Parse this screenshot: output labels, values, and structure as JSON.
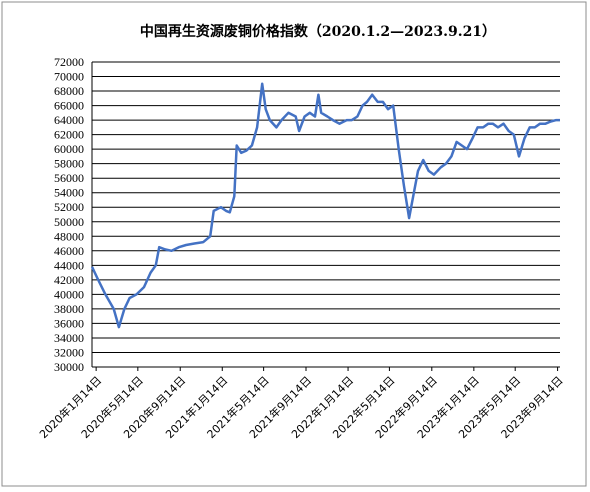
{
  "chart_data": {
    "type": "line",
    "title": "中国再生资源废铜价格指数（2020.1.2—2023.9.21）",
    "xlabel": "",
    "ylabel": "",
    "ylim": [
      30000,
      72000
    ],
    "y_ticks": [
      30000,
      32000,
      34000,
      36000,
      38000,
      40000,
      42000,
      44000,
      46000,
      48000,
      50000,
      52000,
      54000,
      56000,
      58000,
      60000,
      62000,
      64000,
      66000,
      68000,
      70000,
      72000
    ],
    "y_tick_labels": [
      "30000",
      "32000",
      "34000",
      "36000",
      "38000",
      "40000",
      "42000",
      "44000",
      "46000",
      "48000",
      "50000",
      "52000",
      "54000",
      "56000",
      "58000",
      "60000",
      "62000",
      "64000",
      "66000",
      "68000",
      "70000",
      "72000"
    ],
    "x_range": [
      "2020-01-02",
      "2023-09-21"
    ],
    "x_ticks": [
      "2020-01-14",
      "2020-05-14",
      "2020-09-14",
      "2021-01-14",
      "2021-05-14",
      "2021-09-14",
      "2022-01-14",
      "2022-05-14",
      "2022-09-14",
      "2023-01-14",
      "2023-05-14",
      "2023-09-14"
    ],
    "x_tick_labels": [
      "2020年1月14日",
      "2020年5月14日",
      "2020年9月14日",
      "2021年1月14日",
      "2021年5月14日",
      "2021年9月14日",
      "2022年1月14日",
      "2022年5月14日",
      "2022年9月14日",
      "2023年1月14日",
      "2023年5月14日",
      "2023年9月14日"
    ],
    "grid": "horizontal",
    "line_color": "#4472C4",
    "series": [
      {
        "name": "",
        "points": [
          [
            "2020-01-02",
            43800
          ],
          [
            "2020-01-20",
            42000
          ],
          [
            "2020-02-10",
            40000
          ],
          [
            "2020-03-05",
            38000
          ],
          [
            "2020-03-20",
            35500
          ],
          [
            "2020-04-05",
            38000
          ],
          [
            "2020-04-20",
            39500
          ],
          [
            "2020-05-10",
            40000
          ],
          [
            "2020-06-01",
            41000
          ],
          [
            "2020-06-20",
            43000
          ],
          [
            "2020-07-05",
            44000
          ],
          [
            "2020-07-15",
            46500
          ],
          [
            "2020-08-01",
            46200
          ],
          [
            "2020-08-20",
            46000
          ],
          [
            "2020-09-10",
            46500
          ],
          [
            "2020-10-01",
            46800
          ],
          [
            "2020-10-25",
            47000
          ],
          [
            "2020-11-20",
            47200
          ],
          [
            "2020-12-10",
            48000
          ],
          [
            "2020-12-20",
            51500
          ],
          [
            "2021-01-10",
            52000
          ],
          [
            "2021-01-25",
            51500
          ],
          [
            "2021-02-05",
            51300
          ],
          [
            "2021-02-18",
            53500
          ],
          [
            "2021-02-25",
            60500
          ],
          [
            "2021-03-10",
            59500
          ],
          [
            "2021-03-25",
            59800
          ],
          [
            "2021-04-10",
            60500
          ],
          [
            "2021-04-25",
            63000
          ],
          [
            "2021-05-10",
            69000
          ],
          [
            "2021-05-20",
            65500
          ],
          [
            "2021-06-01",
            64000
          ],
          [
            "2021-06-20",
            63000
          ],
          [
            "2021-07-05",
            64000
          ],
          [
            "2021-07-25",
            65000
          ],
          [
            "2021-08-15",
            64500
          ],
          [
            "2021-08-25",
            62500
          ],
          [
            "2021-09-10",
            64500
          ],
          [
            "2021-09-25",
            65000
          ],
          [
            "2021-10-10",
            64500
          ],
          [
            "2021-10-20",
            67500
          ],
          [
            "2021-10-28",
            65000
          ],
          [
            "2021-11-15",
            64500
          ],
          [
            "2021-12-01",
            64000
          ],
          [
            "2021-12-20",
            63500
          ],
          [
            "2022-01-10",
            64000
          ],
          [
            "2022-01-25",
            64000
          ],
          [
            "2022-02-10",
            64500
          ],
          [
            "2022-02-25",
            66000
          ],
          [
            "2022-03-10",
            66500
          ],
          [
            "2022-03-25",
            67500
          ],
          [
            "2022-04-10",
            66500
          ],
          [
            "2022-04-25",
            66500
          ],
          [
            "2022-05-10",
            65500
          ],
          [
            "2022-05-25",
            66000
          ],
          [
            "2022-06-10",
            60000
          ],
          [
            "2022-06-25",
            55000
          ],
          [
            "2022-07-10",
            50500
          ],
          [
            "2022-07-20",
            53000
          ],
          [
            "2022-08-05",
            57000
          ],
          [
            "2022-08-20",
            58500
          ],
          [
            "2022-09-05",
            57000
          ],
          [
            "2022-09-20",
            56500
          ],
          [
            "2022-10-10",
            57500
          ],
          [
            "2022-10-25",
            58000
          ],
          [
            "2022-11-10",
            59000
          ],
          [
            "2022-11-25",
            61000
          ],
          [
            "2022-12-10",
            60500
          ],
          [
            "2022-12-25",
            60000
          ],
          [
            "2023-01-10",
            61500
          ],
          [
            "2023-01-25",
            63000
          ],
          [
            "2023-02-10",
            63000
          ],
          [
            "2023-02-25",
            63500
          ],
          [
            "2023-03-10",
            63500
          ],
          [
            "2023-03-25",
            63000
          ],
          [
            "2023-04-10",
            63500
          ],
          [
            "2023-04-25",
            62500
          ],
          [
            "2023-05-10",
            62000
          ],
          [
            "2023-05-25",
            59000
          ],
          [
            "2023-06-10",
            61500
          ],
          [
            "2023-06-25",
            63000
          ],
          [
            "2023-07-10",
            63000
          ],
          [
            "2023-07-25",
            63500
          ],
          [
            "2023-08-10",
            63500
          ],
          [
            "2023-08-25",
            63800
          ],
          [
            "2023-09-10",
            64000
          ],
          [
            "2023-09-21",
            64000
          ]
        ]
      }
    ]
  }
}
